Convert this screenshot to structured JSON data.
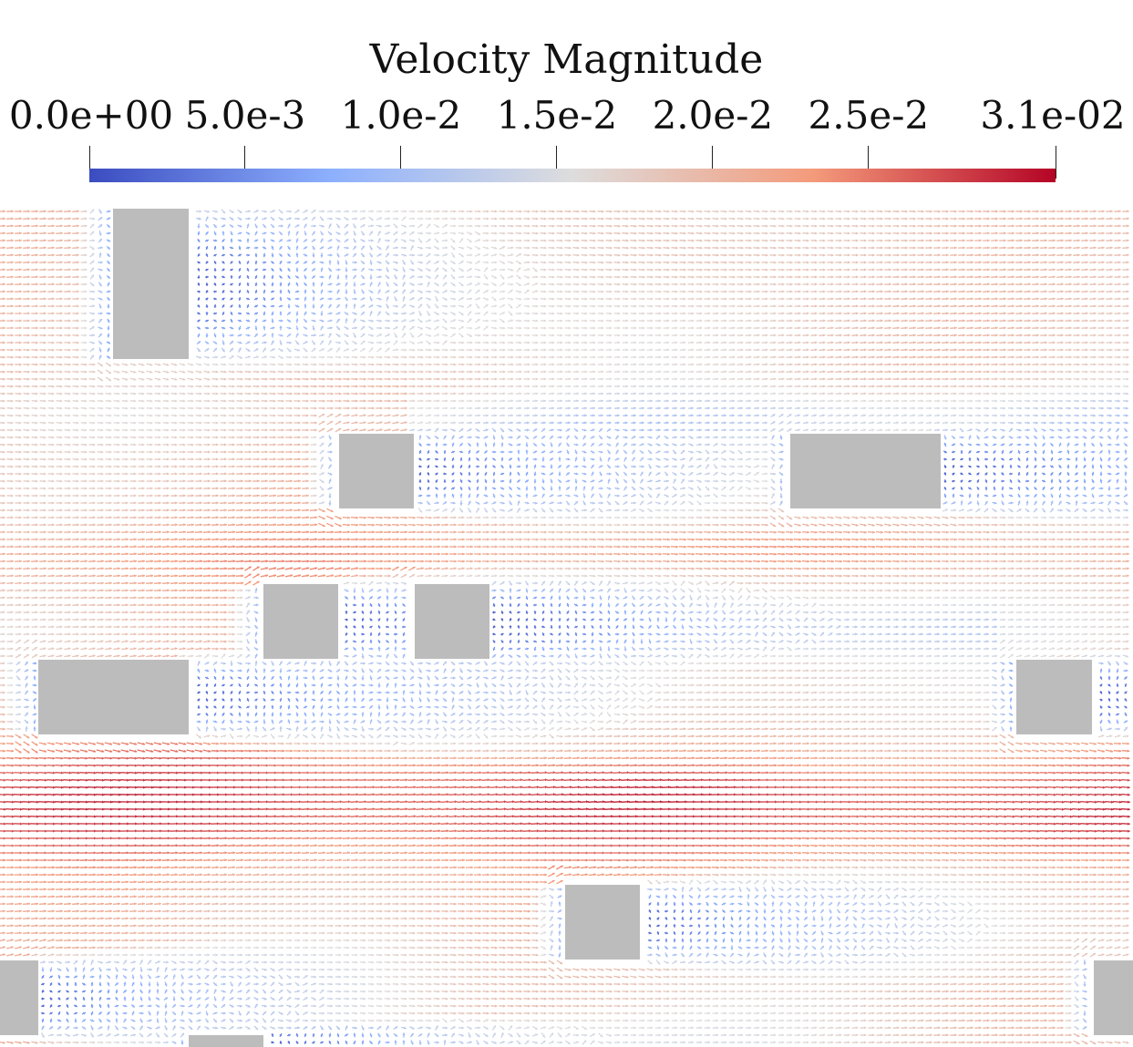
{
  "colorbar": {
    "title": "Velocity Magnitude",
    "min": 0.0,
    "max": 0.031,
    "colormap": [
      "#3b4cc0",
      "#8db0fe",
      "#dddddd",
      "#f49a7b",
      "#b40426"
    ],
    "ticks": [
      {
        "value": 0.0,
        "label": "0.0e+00"
      },
      {
        "value": 0.005,
        "label": "5.0e-3"
      },
      {
        "value": 0.01,
        "label": "1.0e-2"
      },
      {
        "value": 0.015,
        "label": "1.5e-2"
      },
      {
        "value": 0.02,
        "label": "2.0e-2"
      },
      {
        "value": 0.025,
        "label": "2.5e-2"
      },
      {
        "value": 0.031,
        "label": "3.1e-02"
      }
    ]
  },
  "obstacle_color": "#bcbcbc"
}
